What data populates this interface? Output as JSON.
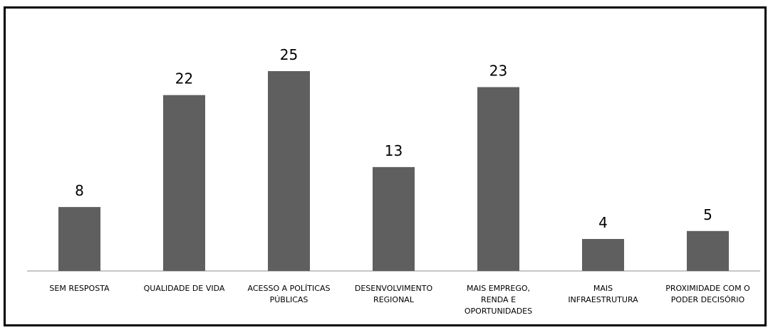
{
  "chart_data": {
    "type": "bar",
    "categories": [
      "SEM RESPOSTA",
      "QUALIDADE DE VIDA",
      "ACESSO A POLÍTICAS PÚBLICAS",
      "DESENVOLVIMENTO REGIONAL",
      "MAIS EMPREGO, RENDA E OPORTUNIDADES",
      "MAIS INFRAESTRUTURA",
      "PROXIMIDADE COM O PODER DECISÓRIO"
    ],
    "category_lines": [
      [
        "SEM RESPOSTA"
      ],
      [
        "QUALIDADE DE VIDA"
      ],
      [
        "ACESSO A POLÍTICAS",
        "PÚBLICAS"
      ],
      [
        "DESENVOLVIMENTO",
        "REGIONAL"
      ],
      [
        "MAIS EMPREGO,",
        "RENDA E",
        "OPORTUNIDADES"
      ],
      [
        "MAIS",
        "INFRAESTRUTURA"
      ],
      [
        "PROXIMIDADE COM O",
        "PODER DECISÓRIO"
      ]
    ],
    "values": [
      8,
      22,
      25,
      13,
      23,
      4,
      5
    ],
    "data_labels": true,
    "bar_color": "#5f5f5f",
    "grid": false,
    "legend": "none",
    "ylim": [
      0,
      25
    ]
  }
}
